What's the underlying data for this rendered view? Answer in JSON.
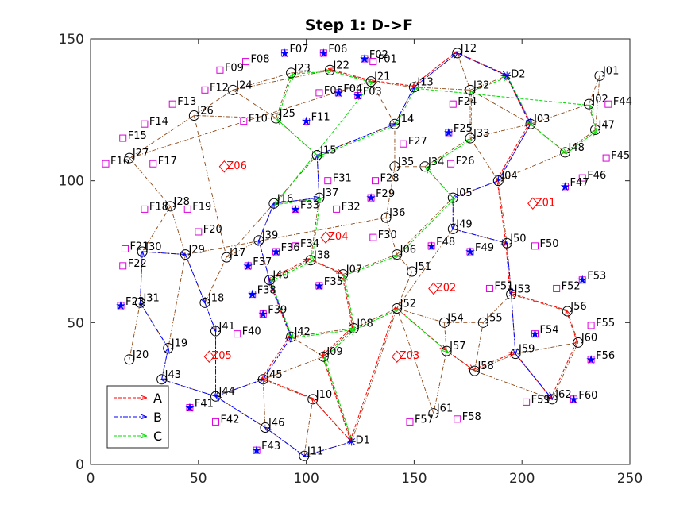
{
  "chart_data": {
    "type": "scatter",
    "title": "Step 1: D->F",
    "xlim": [
      0,
      250
    ],
    "ylim": [
      0,
      150
    ],
    "xticks": [
      0,
      50,
      100,
      150,
      200,
      250
    ],
    "yticks": [
      0,
      50,
      100,
      150
    ],
    "grid": false,
    "legend_position": "bottom-left",
    "colors": {
      "edge": "#8b4513",
      "route_A": "#ff0000",
      "route_B": "#0000ff",
      "route_C": "#00dd00",
      "junction": "#000000",
      "target": "#0000ff",
      "flag": "#dd00dd",
      "zone": "#ff0000"
    },
    "legend": [
      {
        "label": "A",
        "color": "#ff0000"
      },
      {
        "label": "B",
        "color": "#0000ff"
      },
      {
        "label": "C",
        "color": "#00dd00"
      }
    ],
    "depots": [
      {
        "id": "D1",
        "x": 121,
        "y": 8
      },
      {
        "id": "D2",
        "x": 193,
        "y": 137
      }
    ],
    "junctions": [
      {
        "id": "J01",
        "x": 236,
        "y": 137
      },
      {
        "id": "J02",
        "x": 231,
        "y": 127
      },
      {
        "id": "J03",
        "x": 204,
        "y": 120
      },
      {
        "id": "J04",
        "x": 189,
        "y": 100
      },
      {
        "id": "J05",
        "x": 168,
        "y": 94
      },
      {
        "id": "J06",
        "x": 142,
        "y": 74
      },
      {
        "id": "J07",
        "x": 117,
        "y": 67
      },
      {
        "id": "J08",
        "x": 122,
        "y": 48
      },
      {
        "id": "J09",
        "x": 108,
        "y": 38
      },
      {
        "id": "J10",
        "x": 103,
        "y": 23
      },
      {
        "id": "J11",
        "x": 99,
        "y": 3
      },
      {
        "id": "J12",
        "x": 170,
        "y": 145
      },
      {
        "id": "J13",
        "x": 150,
        "y": 133
      },
      {
        "id": "J14",
        "x": 141,
        "y": 120
      },
      {
        "id": "J15",
        "x": 105,
        "y": 109
      },
      {
        "id": "J16",
        "x": 85,
        "y": 92
      },
      {
        "id": "J17",
        "x": 63,
        "y": 73
      },
      {
        "id": "J18",
        "x": 53,
        "y": 57
      },
      {
        "id": "J19",
        "x": 36,
        "y": 41
      },
      {
        "id": "J20",
        "x": 18,
        "y": 37
      },
      {
        "id": "J21",
        "x": 130,
        "y": 135
      },
      {
        "id": "J22",
        "x": 111,
        "y": 139
      },
      {
        "id": "J23",
        "x": 93,
        "y": 138
      },
      {
        "id": "J24",
        "x": 66,
        "y": 132
      },
      {
        "id": "J25",
        "x": 86,
        "y": 122
      },
      {
        "id": "J26",
        "x": 48,
        "y": 123
      },
      {
        "id": "J27",
        "x": 18,
        "y": 108
      },
      {
        "id": "J28",
        "x": 37,
        "y": 91
      },
      {
        "id": "J29",
        "x": 44,
        "y": 74
      },
      {
        "id": "J30",
        "x": 24,
        "y": 75
      },
      {
        "id": "J31",
        "x": 23,
        "y": 57
      },
      {
        "id": "J32",
        "x": 176,
        "y": 132
      },
      {
        "id": "J33",
        "x": 176,
        "y": 115
      },
      {
        "id": "J34",
        "x": 155,
        "y": 105
      },
      {
        "id": "J35",
        "x": 141,
        "y": 105
      },
      {
        "id": "J36",
        "x": 137,
        "y": 87
      },
      {
        "id": "J37",
        "x": 106,
        "y": 94
      },
      {
        "id": "J38",
        "x": 102,
        "y": 72
      },
      {
        "id": "J39",
        "x": 78,
        "y": 79
      },
      {
        "id": "J40",
        "x": 83,
        "y": 65
      },
      {
        "id": "J41",
        "x": 58,
        "y": 47
      },
      {
        "id": "J42",
        "x": 93,
        "y": 45
      },
      {
        "id": "J43",
        "x": 33,
        "y": 30
      },
      {
        "id": "J44",
        "x": 58,
        "y": 24
      },
      {
        "id": "J45",
        "x": 80,
        "y": 30
      },
      {
        "id": "J46",
        "x": 81,
        "y": 13
      },
      {
        "id": "J47",
        "x": 234,
        "y": 118
      },
      {
        "id": "J48",
        "x": 220,
        "y": 110
      },
      {
        "id": "J49",
        "x": 168,
        "y": 83
      },
      {
        "id": "J50",
        "x": 193,
        "y": 78
      },
      {
        "id": "J51",
        "x": 149,
        "y": 68
      },
      {
        "id": "J52",
        "x": 142,
        "y": 55
      },
      {
        "id": "J53",
        "x": 195,
        "y": 60
      },
      {
        "id": "J54",
        "x": 164,
        "y": 50
      },
      {
        "id": "J55",
        "x": 182,
        "y": 50
      },
      {
        "id": "J56",
        "x": 221,
        "y": 54
      },
      {
        "id": "J57",
        "x": 165,
        "y": 40
      },
      {
        "id": "J58",
        "x": 178,
        "y": 33
      },
      {
        "id": "J59",
        "x": 197,
        "y": 39
      },
      {
        "id": "J60",
        "x": 226,
        "y": 43
      },
      {
        "id": "J61",
        "x": 159,
        "y": 18
      },
      {
        "id": "J62",
        "x": 214,
        "y": 23
      }
    ],
    "targets": [
      {
        "id": "F07",
        "x": 90,
        "y": 145
      },
      {
        "id": "F06",
        "x": 108,
        "y": 145
      },
      {
        "id": "F02",
        "x": 127,
        "y": 143
      },
      {
        "id": "F04",
        "x": 115,
        "y": 131
      },
      {
        "id": "F03",
        "x": 124,
        "y": 130
      },
      {
        "id": "F11",
        "x": 100,
        "y": 121
      },
      {
        "id": "F25",
        "x": 166,
        "y": 117
      },
      {
        "id": "F29",
        "x": 130,
        "y": 94
      },
      {
        "id": "F33",
        "x": 95,
        "y": 90
      },
      {
        "id": "F36",
        "x": 86,
        "y": 75
      },
      {
        "id": "F37",
        "x": 73,
        "y": 70
      },
      {
        "id": "F35",
        "x": 106,
        "y": 63
      },
      {
        "id": "F38",
        "x": 75,
        "y": 60
      },
      {
        "id": "F39",
        "x": 80,
        "y": 53
      },
      {
        "id": "F23",
        "x": 14,
        "y": 56
      },
      {
        "id": "F41",
        "x": 46,
        "y": 20
      },
      {
        "id": "F43",
        "x": 77,
        "y": 5
      },
      {
        "id": "F48",
        "x": 158,
        "y": 77
      },
      {
        "id": "F49",
        "x": 176,
        "y": 75
      },
      {
        "id": "F47",
        "x": 220,
        "y": 98
      },
      {
        "id": "F53",
        "x": 228,
        "y": 65
      },
      {
        "id": "F54",
        "x": 206,
        "y": 46
      },
      {
        "id": "F56",
        "x": 232,
        "y": 37
      },
      {
        "id": "F60",
        "x": 224,
        "y": 23
      }
    ],
    "flags": [
      {
        "id": "F01",
        "x": 131,
        "y": 142
      },
      {
        "id": "F05",
        "x": 106,
        "y": 131
      },
      {
        "id": "F08",
        "x": 72,
        "y": 142
      },
      {
        "id": "F09",
        "x": 60,
        "y": 139
      },
      {
        "id": "F10",
        "x": 71,
        "y": 121
      },
      {
        "id": "F12",
        "x": 53,
        "y": 132
      },
      {
        "id": "F13",
        "x": 38,
        "y": 127
      },
      {
        "id": "F14",
        "x": 25,
        "y": 120
      },
      {
        "id": "F15",
        "x": 15,
        "y": 115
      },
      {
        "id": "F16",
        "x": 7,
        "y": 106
      },
      {
        "id": "F17",
        "x": 29,
        "y": 106
      },
      {
        "id": "F18",
        "x": 25,
        "y": 90
      },
      {
        "id": "F19",
        "x": 45,
        "y": 90
      },
      {
        "id": "F20",
        "x": 50,
        "y": 82
      },
      {
        "id": "F21",
        "x": 16,
        "y": 76
      },
      {
        "id": "F22",
        "x": 15,
        "y": 70
      },
      {
        "id": "F24",
        "x": 168,
        "y": 127
      },
      {
        "id": "F26",
        "x": 167,
        "y": 106
      },
      {
        "id": "F27",
        "x": 145,
        "y": 113
      },
      {
        "id": "F28",
        "x": 132,
        "y": 100
      },
      {
        "id": "F30",
        "x": 131,
        "y": 80
      },
      {
        "id": "F31",
        "x": 110,
        "y": 100
      },
      {
        "id": "F32",
        "x": 114,
        "y": 90
      },
      {
        "id": "F34",
        "x": 95,
        "y": 77
      },
      {
        "id": "F40",
        "x": 68,
        "y": 46
      },
      {
        "id": "F42",
        "x": 58,
        "y": 15
      },
      {
        "id": "F44",
        "x": 240,
        "y": 127
      },
      {
        "id": "F45",
        "x": 239,
        "y": 108
      },
      {
        "id": "F46",
        "x": 228,
        "y": 101
      },
      {
        "id": "F50",
        "x": 206,
        "y": 77
      },
      {
        "id": "F51",
        "x": 185,
        "y": 62
      },
      {
        "id": "F52",
        "x": 216,
        "y": 62
      },
      {
        "id": "F55",
        "x": 232,
        "y": 49
      },
      {
        "id": "F57",
        "x": 148,
        "y": 15
      },
      {
        "id": "F58",
        "x": 170,
        "y": 16
      },
      {
        "id": "F59",
        "x": 202,
        "y": 22
      }
    ],
    "zones": [
      {
        "id": "Z01",
        "x": 205,
        "y": 92
      },
      {
        "id": "Z02",
        "x": 159,
        "y": 62
      },
      {
        "id": "Z03",
        "x": 142,
        "y": 38
      },
      {
        "id": "Z04",
        "x": 109,
        "y": 80
      },
      {
        "id": "Z05",
        "x": 55,
        "y": 38
      },
      {
        "id": "Z06",
        "x": 62,
        "y": 105
      }
    ],
    "edges": [
      [
        "J23",
        "J22"
      ],
      [
        "J22",
        "J21"
      ],
      [
        "J21",
        "J13"
      ],
      [
        "J13",
        "J12"
      ],
      [
        "J12",
        "J32"
      ],
      [
        "J32",
        "D2"
      ],
      [
        "J12",
        "D2"
      ],
      [
        "D2",
        "J03"
      ],
      [
        "J03",
        "J02"
      ],
      [
        "J02",
        "J01"
      ],
      [
        "J02",
        "J47"
      ],
      [
        "J47",
        "J48"
      ],
      [
        "J48",
        "J03"
      ],
      [
        "J03",
        "J32"
      ],
      [
        "J32",
        "J13"
      ],
      [
        "J32",
        "J33"
      ],
      [
        "J33",
        "J03"
      ],
      [
        "J03",
        "J04"
      ],
      [
        "J04",
        "J33"
      ],
      [
        "J04",
        "J05"
      ],
      [
        "J04",
        "J50"
      ],
      [
        "J50",
        "J49"
      ],
      [
        "J49",
        "J05"
      ],
      [
        "J05",
        "J34"
      ],
      [
        "J34",
        "J35"
      ],
      [
        "J34",
        "J33"
      ],
      [
        "J35",
        "J14"
      ],
      [
        "J14",
        "J13"
      ],
      [
        "J14",
        "J21"
      ],
      [
        "J14",
        "J15"
      ],
      [
        "J15",
        "J25"
      ],
      [
        "J25",
        "J23"
      ],
      [
        "J25",
        "J24"
      ],
      [
        "J24",
        "J23"
      ],
      [
        "J24",
        "J26"
      ],
      [
        "J26",
        "J27"
      ],
      [
        "J26",
        "J25"
      ],
      [
        "J27",
        "J28"
      ],
      [
        "J28",
        "J29"
      ],
      [
        "J28",
        "J30"
      ],
      [
        "J29",
        "J30"
      ],
      [
        "J30",
        "J31"
      ],
      [
        "J31",
        "J20"
      ],
      [
        "J31",
        "J19"
      ],
      [
        "J29",
        "J19"
      ],
      [
        "J29",
        "J18"
      ],
      [
        "J18",
        "J17"
      ],
      [
        "J17",
        "J16"
      ],
      [
        "J16",
        "J15"
      ],
      [
        "J16",
        "J37"
      ],
      [
        "J37",
        "J15"
      ],
      [
        "J37",
        "J38"
      ],
      [
        "J38",
        "J07"
      ],
      [
        "J07",
        "J06"
      ],
      [
        "J06",
        "J36"
      ],
      [
        "J36",
        "J35"
      ],
      [
        "J36",
        "J29"
      ],
      [
        "J06",
        "J05"
      ],
      [
        "J06",
        "J51"
      ],
      [
        "J51",
        "J52"
      ],
      [
        "J52",
        "J08"
      ],
      [
        "J08",
        "J07"
      ],
      [
        "J08",
        "J42"
      ],
      [
        "J42",
        "J40"
      ],
      [
        "J40",
        "J39"
      ],
      [
        "J39",
        "J16"
      ],
      [
        "J39",
        "J17"
      ],
      [
        "J40",
        "J38"
      ],
      [
        "J42",
        "J09"
      ],
      [
        "J09",
        "J08"
      ],
      [
        "J09",
        "J45"
      ],
      [
        "J45",
        "J44"
      ],
      [
        "J44",
        "J43"
      ],
      [
        "J43",
        "J19"
      ],
      [
        "J44",
        "J41"
      ],
      [
        "J41",
        "J18"
      ],
      [
        "J45",
        "J46"
      ],
      [
        "J46",
        "J44"
      ],
      [
        "J46",
        "J11"
      ],
      [
        "J11",
        "J10"
      ],
      [
        "J10",
        "J45"
      ],
      [
        "J10",
        "D1"
      ],
      [
        "D1",
        "J11"
      ],
      [
        "D1",
        "J09"
      ],
      [
        "D1",
        "J52"
      ],
      [
        "J52",
        "J54"
      ],
      [
        "J54",
        "J57"
      ],
      [
        "J57",
        "J61"
      ],
      [
        "J61",
        "J52"
      ],
      [
        "J57",
        "J58"
      ],
      [
        "J58",
        "J55"
      ],
      [
        "J55",
        "J54"
      ],
      [
        "J55",
        "J53"
      ],
      [
        "J53",
        "J50"
      ],
      [
        "J53",
        "J59"
      ],
      [
        "J59",
        "J58"
      ],
      [
        "J59",
        "J62"
      ],
      [
        "J62",
        "J60"
      ],
      [
        "J60",
        "J56"
      ],
      [
        "J56",
        "J53"
      ],
      [
        "J60",
        "J59"
      ],
      [
        "J62",
        "J58"
      ],
      [
        "J49",
        "J52"
      ],
      [
        "J26",
        "J17"
      ],
      [
        "J27",
        "J21"
      ],
      [
        "J24",
        "J22"
      ],
      [
        "J48",
        "J04"
      ],
      [
        "J01",
        "J47"
      ]
    ],
    "routes": [
      {
        "name": "A",
        "path": [
          "D1",
          "J10",
          "J45",
          "J42",
          "J40",
          "J38",
          "J07",
          "J08",
          "J09",
          "D1",
          "J52",
          "J57",
          "J58",
          "J59",
          "J62",
          "J60",
          "J56",
          "J53",
          "J50",
          "J04",
          "J03",
          "D2",
          "J12",
          "J13",
          "J21",
          "J22"
        ]
      },
      {
        "name": "B",
        "path": [
          "D1",
          "J11",
          "J46",
          "J44",
          "J43",
          "J19",
          "J31",
          "J30",
          "J29",
          "J18",
          "J41",
          "J44",
          "J45",
          "J42",
          "J40",
          "J39",
          "J16",
          "J37",
          "J15",
          "J14",
          "J13",
          "J12",
          "D2",
          "J03",
          "J04",
          "J05",
          "J49",
          "J50",
          "J53",
          "J59",
          "J62"
        ]
      },
      {
        "name": "C",
        "path": [
          "D1",
          "J09",
          "J08",
          "J07",
          "J06",
          "J05",
          "J34",
          "J33",
          "J32",
          "D2",
          "J03",
          "J48",
          "J47",
          "J02",
          "J13",
          "J14",
          "J15",
          "J25",
          "J23",
          "J22",
          "J21",
          "J16",
          "J37",
          "J38",
          "J40",
          "J42",
          "J08",
          "J52",
          "J57"
        ]
      }
    ]
  }
}
